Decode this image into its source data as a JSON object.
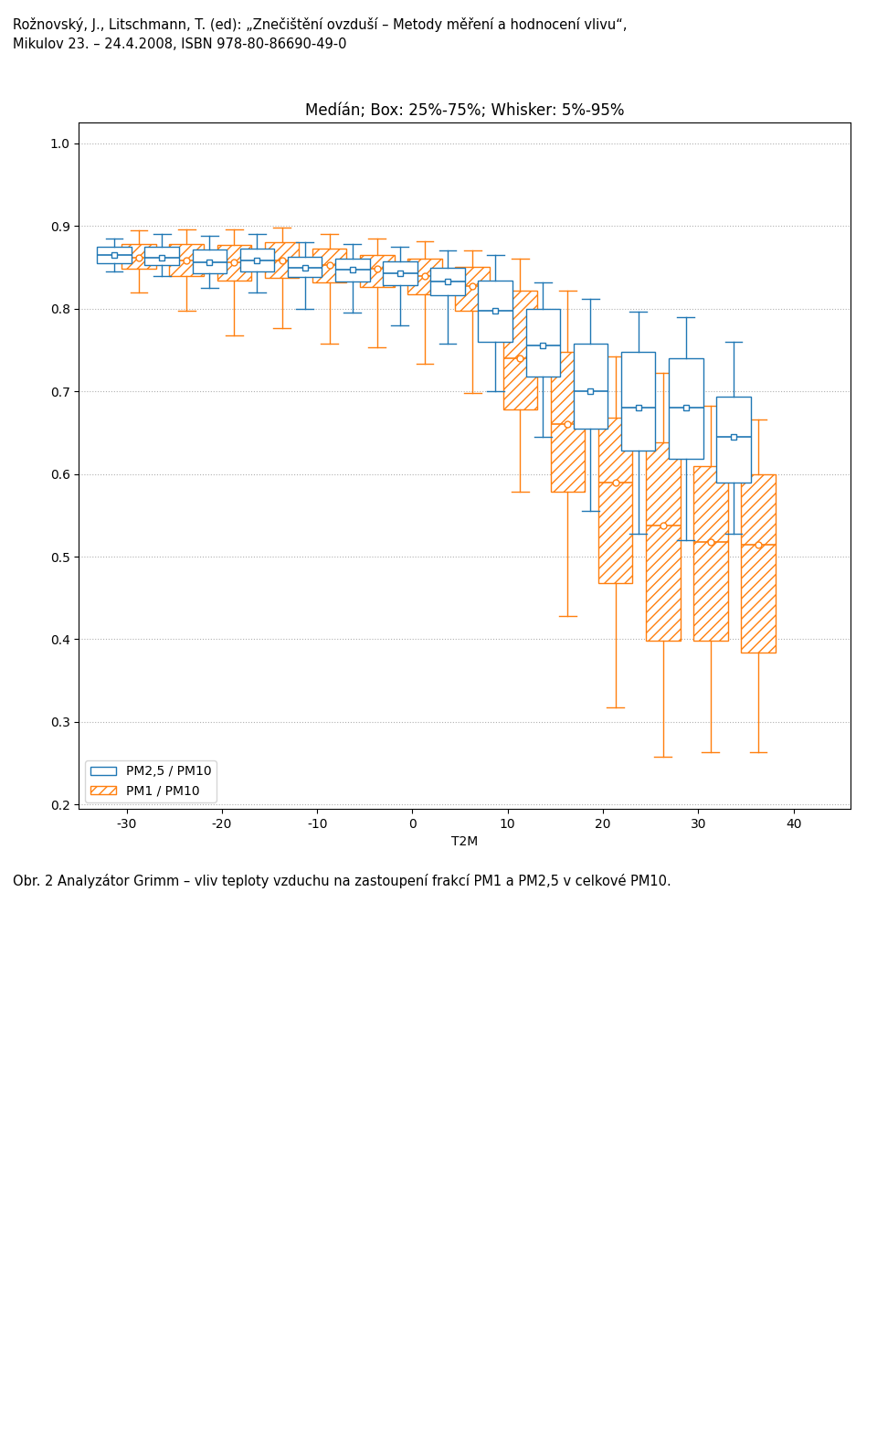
{
  "chart_data": {
    "type": "box",
    "title": "Medíán; Box: 25%-75%; Whisker: 5%-95%",
    "header": [
      "Rožnovský, J., Litschmann, T. (ed): „Znečištění ovzduší – Metody měření a hodnocení vlivu“,",
      "Mikulov 23. – 24.4.2008, ISBN 978-80-86690-49-0"
    ],
    "caption": "Obr. 2 Analyzátor Grimm – vliv teploty vzduchu na zastoupení frakcí PM1 a PM2,5 v celkové PM10.",
    "xlabel": "T2M",
    "xlim": [
      -35,
      46
    ],
    "ylim": [
      0.195,
      1.025
    ],
    "xticks": [
      -30,
      -20,
      -10,
      0,
      10,
      20,
      30,
      40
    ],
    "yticks": [
      0.2,
      0.3,
      0.4,
      0.5,
      0.6,
      0.7,
      0.8,
      0.9,
      {
        "value": 1.0,
        "label": "1.0"
      }
    ],
    "grid": true,
    "legend": "lower left",
    "x": [
      -30,
      -25,
      -20,
      -15,
      -10,
      -5,
      0,
      5,
      10,
      15,
      20,
      25,
      30,
      35
    ],
    "series": [
      {
        "name": "PM2,5 / PM10",
        "marker": "s",
        "p5": [
          0.845,
          0.84,
          0.825,
          0.82,
          0.8,
          0.795,
          0.78,
          0.758,
          0.7,
          0.645,
          0.555,
          0.528,
          0.52,
          0.528
        ],
        "p25": [
          0.855,
          0.853,
          0.843,
          0.845,
          0.838,
          0.833,
          0.828,
          0.816,
          0.76,
          0.718,
          0.655,
          0.628,
          0.618,
          0.59
        ],
        "median": [
          0.865,
          0.862,
          0.856,
          0.858,
          0.85,
          0.847,
          0.843,
          0.833,
          0.798,
          0.755,
          0.7,
          0.68,
          0.68,
          0.645
        ],
        "p75": [
          0.875,
          0.875,
          0.872,
          0.873,
          0.863,
          0.86,
          0.857,
          0.85,
          0.834,
          0.8,
          0.758,
          0.748,
          0.74,
          0.694
        ],
        "p95": [
          0.885,
          0.89,
          0.888,
          0.89,
          0.88,
          0.878,
          0.875,
          0.87,
          0.865,
          0.832,
          0.812,
          0.796,
          0.79,
          0.76
        ]
      },
      {
        "name": "PM1 / PM10",
        "marker": "o",
        "p5": [
          0.82,
          0.798,
          0.768,
          0.776,
          0.758,
          0.753,
          0.733,
          0.698,
          0.578,
          0.428,
          0.318,
          0.258,
          0.263,
          0.263
        ],
        "p25": [
          0.848,
          0.84,
          0.834,
          0.837,
          0.832,
          0.826,
          0.817,
          0.798,
          0.678,
          0.578,
          0.468,
          0.398,
          0.398,
          0.384
        ],
        "median": [
          0.862,
          0.858,
          0.856,
          0.858,
          0.853,
          0.848,
          0.84,
          0.827,
          0.74,
          0.66,
          0.59,
          0.538,
          0.518,
          0.514
        ],
        "p75": [
          0.878,
          0.878,
          0.877,
          0.88,
          0.873,
          0.865,
          0.86,
          0.851,
          0.822,
          0.748,
          0.668,
          0.638,
          0.61,
          0.6
        ],
        "p95": [
          0.895,
          0.896,
          0.896,
          0.898,
          0.89,
          0.885,
          0.882,
          0.871,
          0.861,
          0.822,
          0.742,
          0.722,
          0.682,
          0.666
        ]
      }
    ]
  }
}
